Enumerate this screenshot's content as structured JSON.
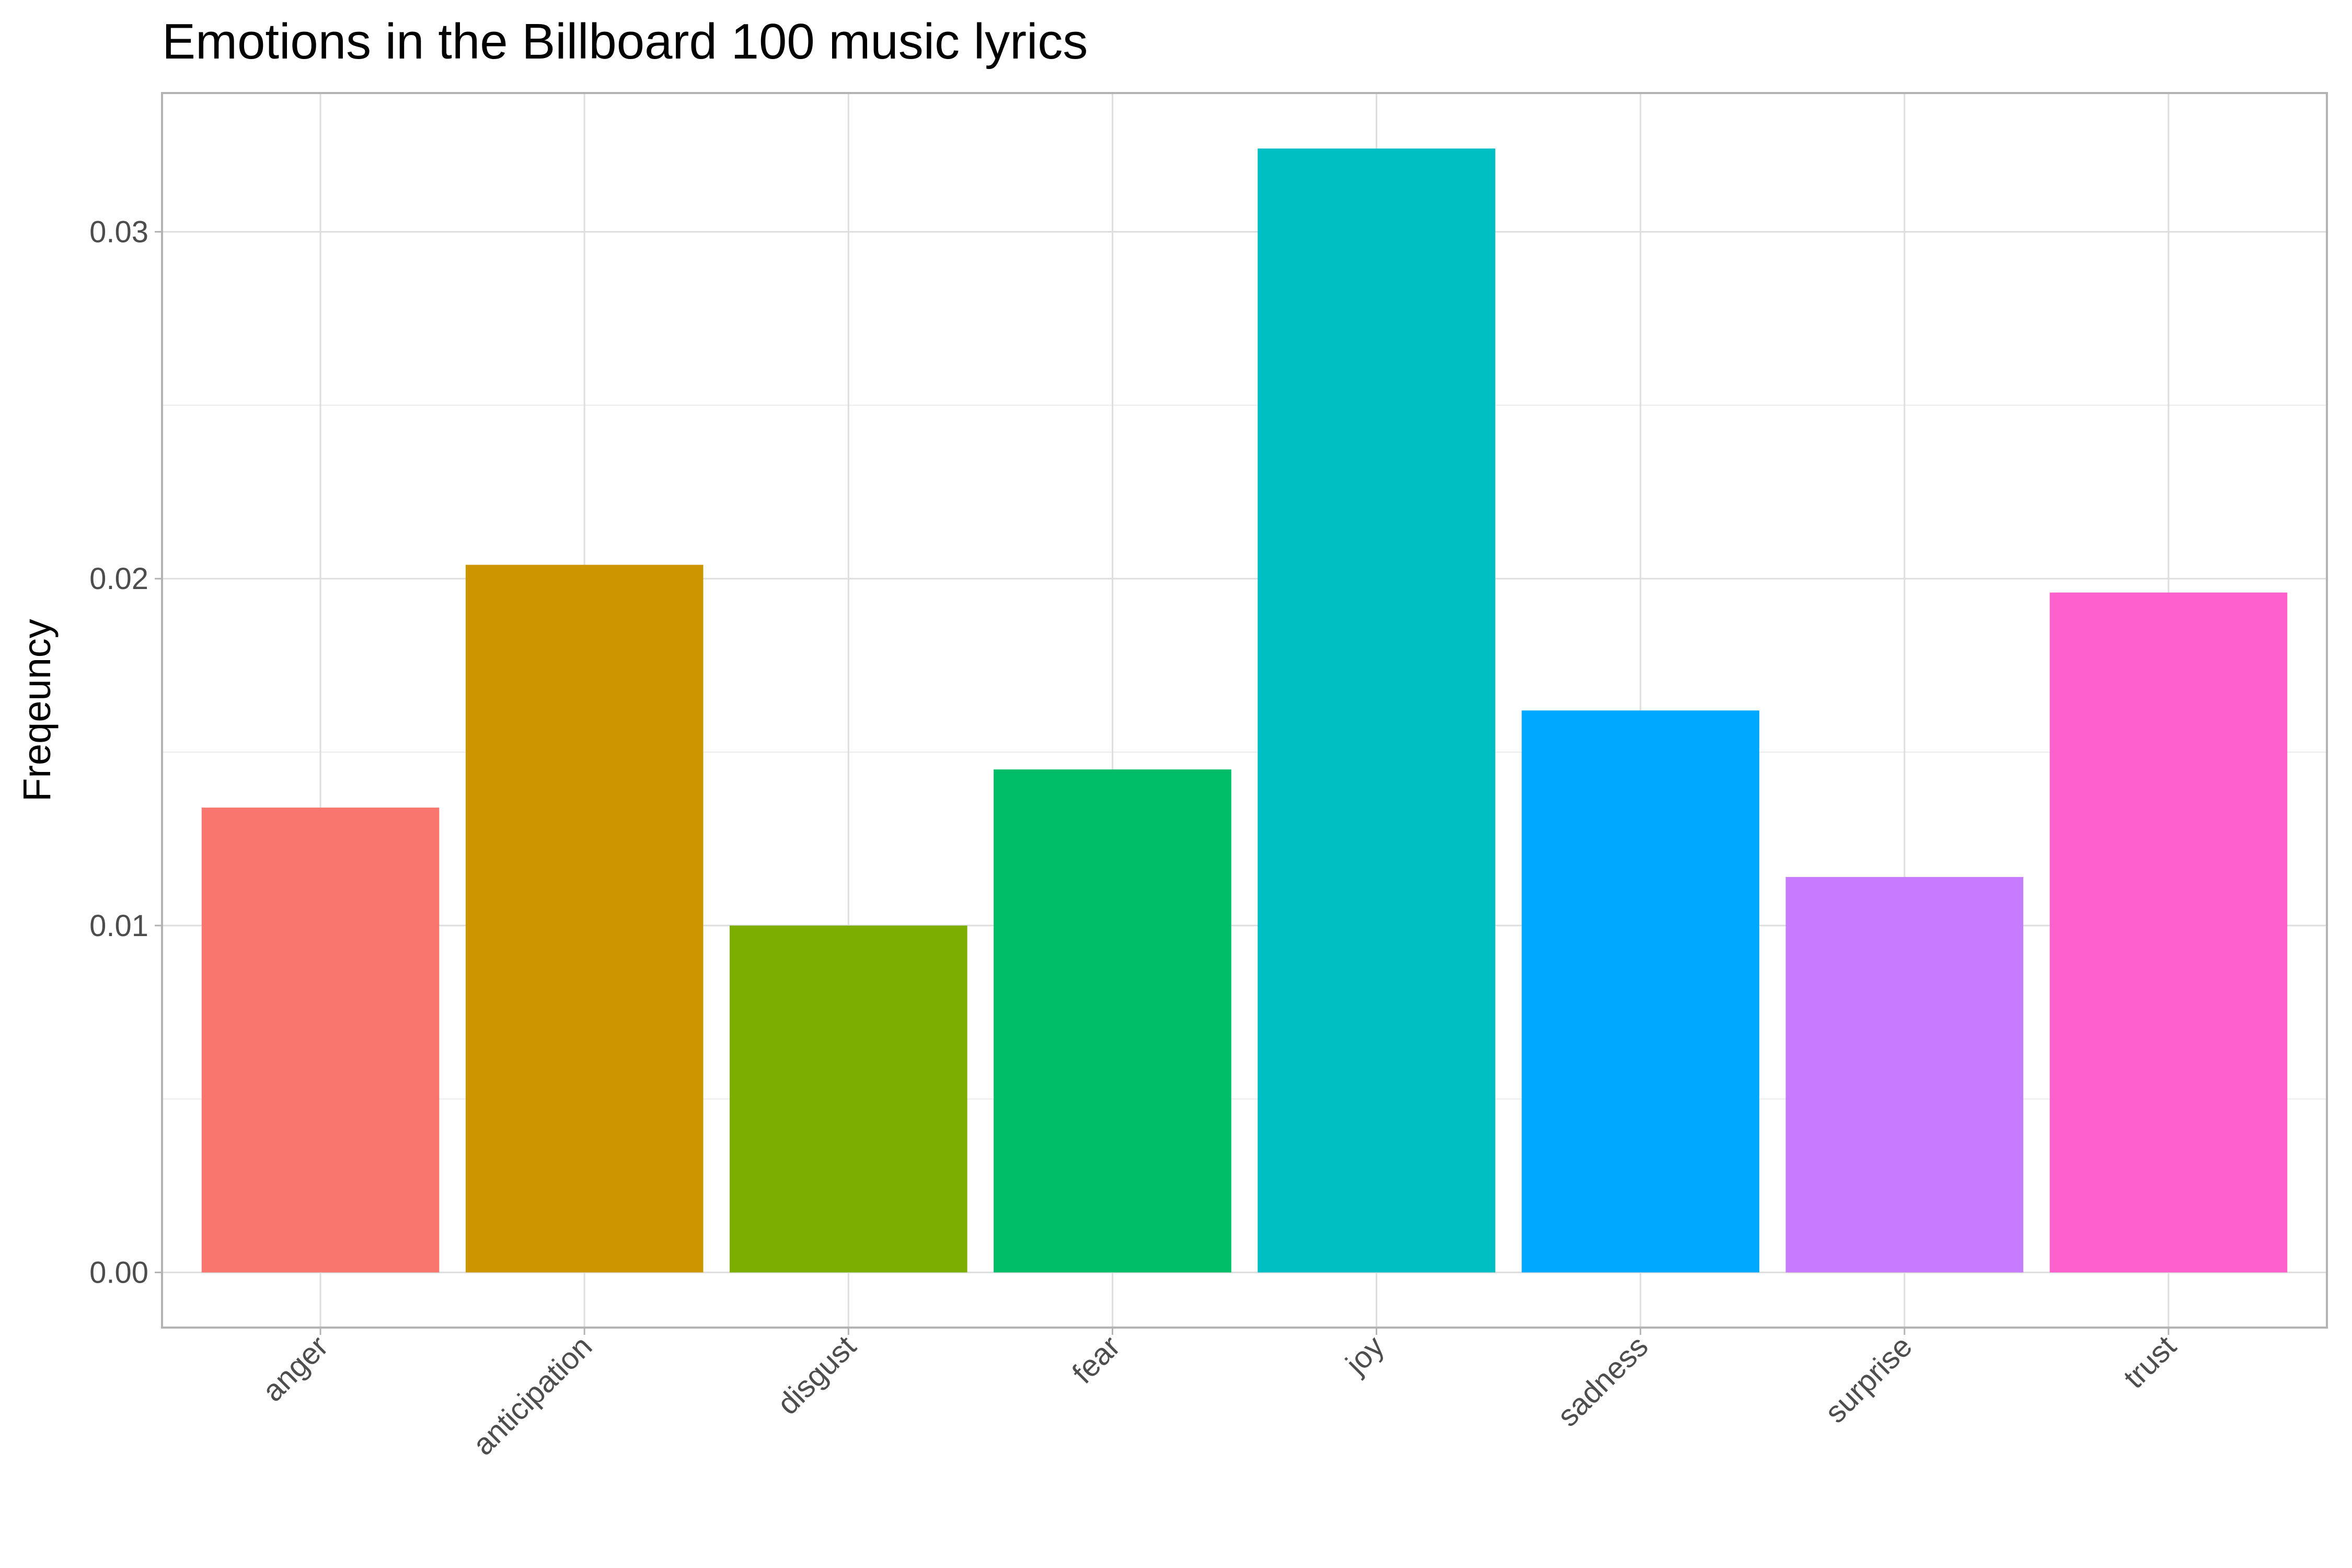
{
  "chart_data": {
    "type": "bar",
    "title": "Emotions in the Billboard 100 music lyrics",
    "xlabel": "",
    "ylabel": "Freqeuncy",
    "categories": [
      "anger",
      "anticipation",
      "disgust",
      "fear",
      "joy",
      "sadness",
      "surprise",
      "trust"
    ],
    "values": [
      0.0134,
      0.0204,
      0.01,
      0.0145,
      0.0324,
      0.0162,
      0.0114,
      0.0196
    ],
    "colors": [
      "#F8766D",
      "#CD9600",
      "#7CAE00",
      "#00BE67",
      "#00BFC4",
      "#00A9FF",
      "#C77CFF",
      "#FF61CC"
    ],
    "ylim": [
      -0.00159,
      0.034
    ],
    "yticks": [
      0.0,
      0.01,
      0.02,
      0.03
    ],
    "ytick_labels": [
      "0.00",
      "0.01",
      "0.02",
      "0.03"
    ],
    "grid": true,
    "legend": "none",
    "x_tick_rotation_deg": 45
  }
}
